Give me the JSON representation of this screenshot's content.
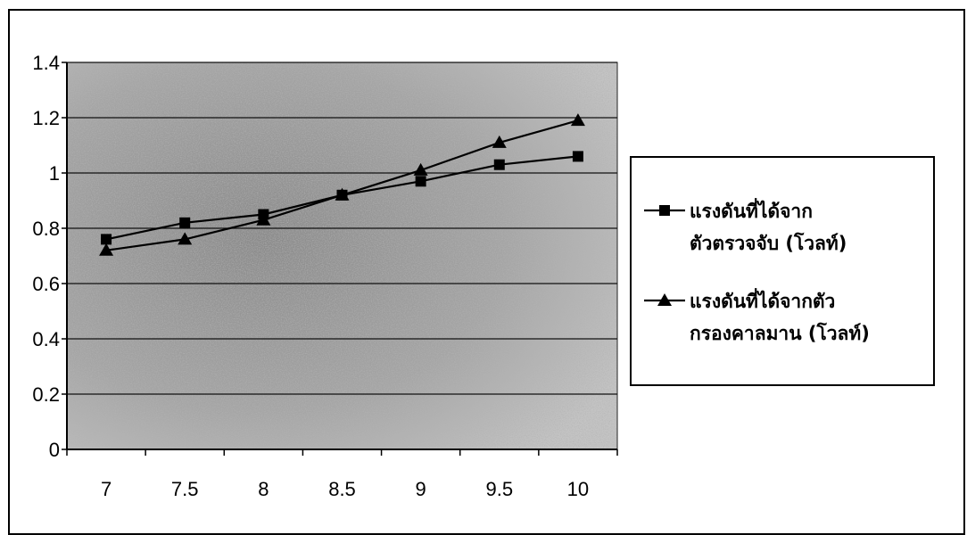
{
  "chart_data": {
    "type": "line",
    "title": "",
    "xlabel": "",
    "ylabel": "",
    "x": [
      7,
      7.5,
      8,
      8.5,
      9,
      9.5,
      10
    ],
    "x_tick_labels": [
      "7",
      "7.5",
      "8",
      "8.5",
      "9",
      "9.5",
      "10"
    ],
    "y_tick_labels": [
      "0",
      "0.2",
      "0.4",
      "0.6",
      "0.8",
      "1",
      "1.2",
      "1.4"
    ],
    "ylim": [
      0,
      1.4
    ],
    "grid": true,
    "legend_position": "right",
    "series": [
      {
        "name_lines": [
          "แรงดันที่ได้จาก",
          "ตัวตรวจจับ  (โวลท์)"
        ],
        "marker": "square",
        "color": "#000000",
        "values": [
          0.76,
          0.82,
          0.85,
          0.92,
          0.97,
          1.03,
          1.06
        ]
      },
      {
        "name_lines": [
          "แรงดันที่ได้จากตัว",
          "กรองคาลมาน  (โวลท์)"
        ],
        "marker": "triangle",
        "color": "#000000",
        "values": [
          0.72,
          0.76,
          0.83,
          0.92,
          1.01,
          1.11,
          1.19
        ]
      }
    ]
  }
}
